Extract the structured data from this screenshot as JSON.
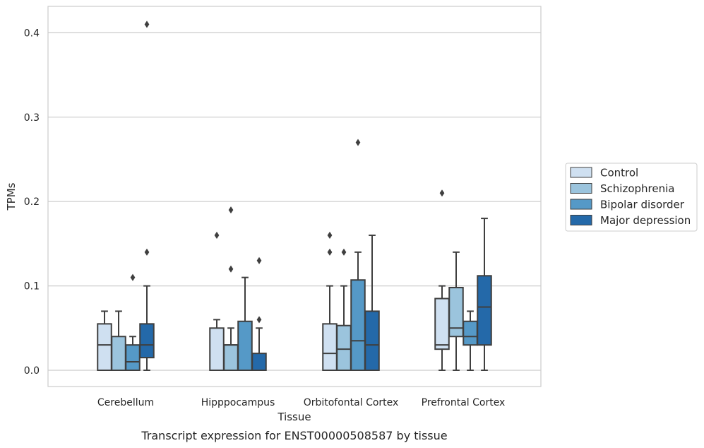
{
  "chart_data": {
    "type": "box",
    "title": "",
    "xlabel": "Tissue",
    "ylabel": "TPMs",
    "caption": "Transcript expression for ENST00000508587 by tissue",
    "ylim": [
      -0.02,
      0.43
    ],
    "yticks": [
      0.0,
      0.1,
      0.2,
      0.3,
      0.4
    ],
    "ytick_labels": [
      "0.0",
      "0.1",
      "0.2",
      "0.3",
      "0.4"
    ],
    "grid": "horizontal",
    "legend_position": "right",
    "categories": [
      "Cerebellum",
      "Hipppocampus",
      "Orbitofontal Cortex",
      "Prefrontal Cortex"
    ],
    "series": [
      {
        "name": "Control",
        "color": "#cfe0f1",
        "boxes": [
          {
            "whislo": 0.0,
            "q1": 0.0,
            "med": 0.03,
            "q3": 0.055,
            "whishi": 0.07,
            "fliers": []
          },
          {
            "whislo": 0.0,
            "q1": 0.0,
            "med": 0.0,
            "q3": 0.05,
            "whishi": 0.06,
            "fliers": [
              0.16
            ]
          },
          {
            "whislo": 0.0,
            "q1": 0.0,
            "med": 0.02,
            "q3": 0.055,
            "whishi": 0.1,
            "fliers": [
              0.14,
              0.16
            ]
          },
          {
            "whislo": 0.0,
            "q1": 0.025,
            "med": 0.03,
            "q3": 0.085,
            "whishi": 0.1,
            "fliers": [
              0.21
            ]
          }
        ]
      },
      {
        "name": "Schizophrenia",
        "color": "#9bc4dd",
        "boxes": [
          {
            "whislo": 0.0,
            "q1": 0.0,
            "med": 0.0,
            "q3": 0.04,
            "whishi": 0.07,
            "fliers": []
          },
          {
            "whislo": 0.0,
            "q1": 0.0,
            "med": 0.03,
            "q3": 0.03,
            "whishi": 0.05,
            "fliers": [
              0.12,
              0.19
            ]
          },
          {
            "whislo": 0.0,
            "q1": 0.0,
            "med": 0.025,
            "q3": 0.053,
            "whishi": 0.1,
            "fliers": [
              0.14
            ]
          },
          {
            "whislo": 0.0,
            "q1": 0.04,
            "med": 0.05,
            "q3": 0.098,
            "whishi": 0.14,
            "fliers": []
          }
        ]
      },
      {
        "name": "Bipolar disorder",
        "color": "#5599c7",
        "boxes": [
          {
            "whislo": 0.0,
            "q1": 0.0,
            "med": 0.01,
            "q3": 0.03,
            "whishi": 0.04,
            "fliers": [
              0.11
            ]
          },
          {
            "whislo": 0.0,
            "q1": 0.0,
            "med": 0.0,
            "q3": 0.058,
            "whishi": 0.11,
            "fliers": []
          },
          {
            "whislo": 0.0,
            "q1": 0.0,
            "med": 0.035,
            "q3": 0.107,
            "whishi": 0.14,
            "fliers": [
              0.27
            ]
          },
          {
            "whislo": 0.0,
            "q1": 0.03,
            "med": 0.04,
            "q3": 0.058,
            "whishi": 0.07,
            "fliers": []
          }
        ]
      },
      {
        "name": "Major depression",
        "color": "#2469a9",
        "boxes": [
          {
            "whislo": 0.0,
            "q1": 0.015,
            "med": 0.03,
            "q3": 0.055,
            "whishi": 0.1,
            "fliers": [
              0.14,
              0.41
            ]
          },
          {
            "whislo": 0.0,
            "q1": 0.0,
            "med": 0.0,
            "q3": 0.02,
            "whishi": 0.05,
            "fliers": [
              0.06,
              0.13
            ]
          },
          {
            "whislo": 0.0,
            "q1": 0.0,
            "med": 0.03,
            "q3": 0.07,
            "whishi": 0.16,
            "fliers": []
          },
          {
            "whislo": 0.0,
            "q1": 0.03,
            "med": 0.075,
            "q3": 0.112,
            "whishi": 0.18,
            "fliers": []
          }
        ]
      }
    ]
  }
}
